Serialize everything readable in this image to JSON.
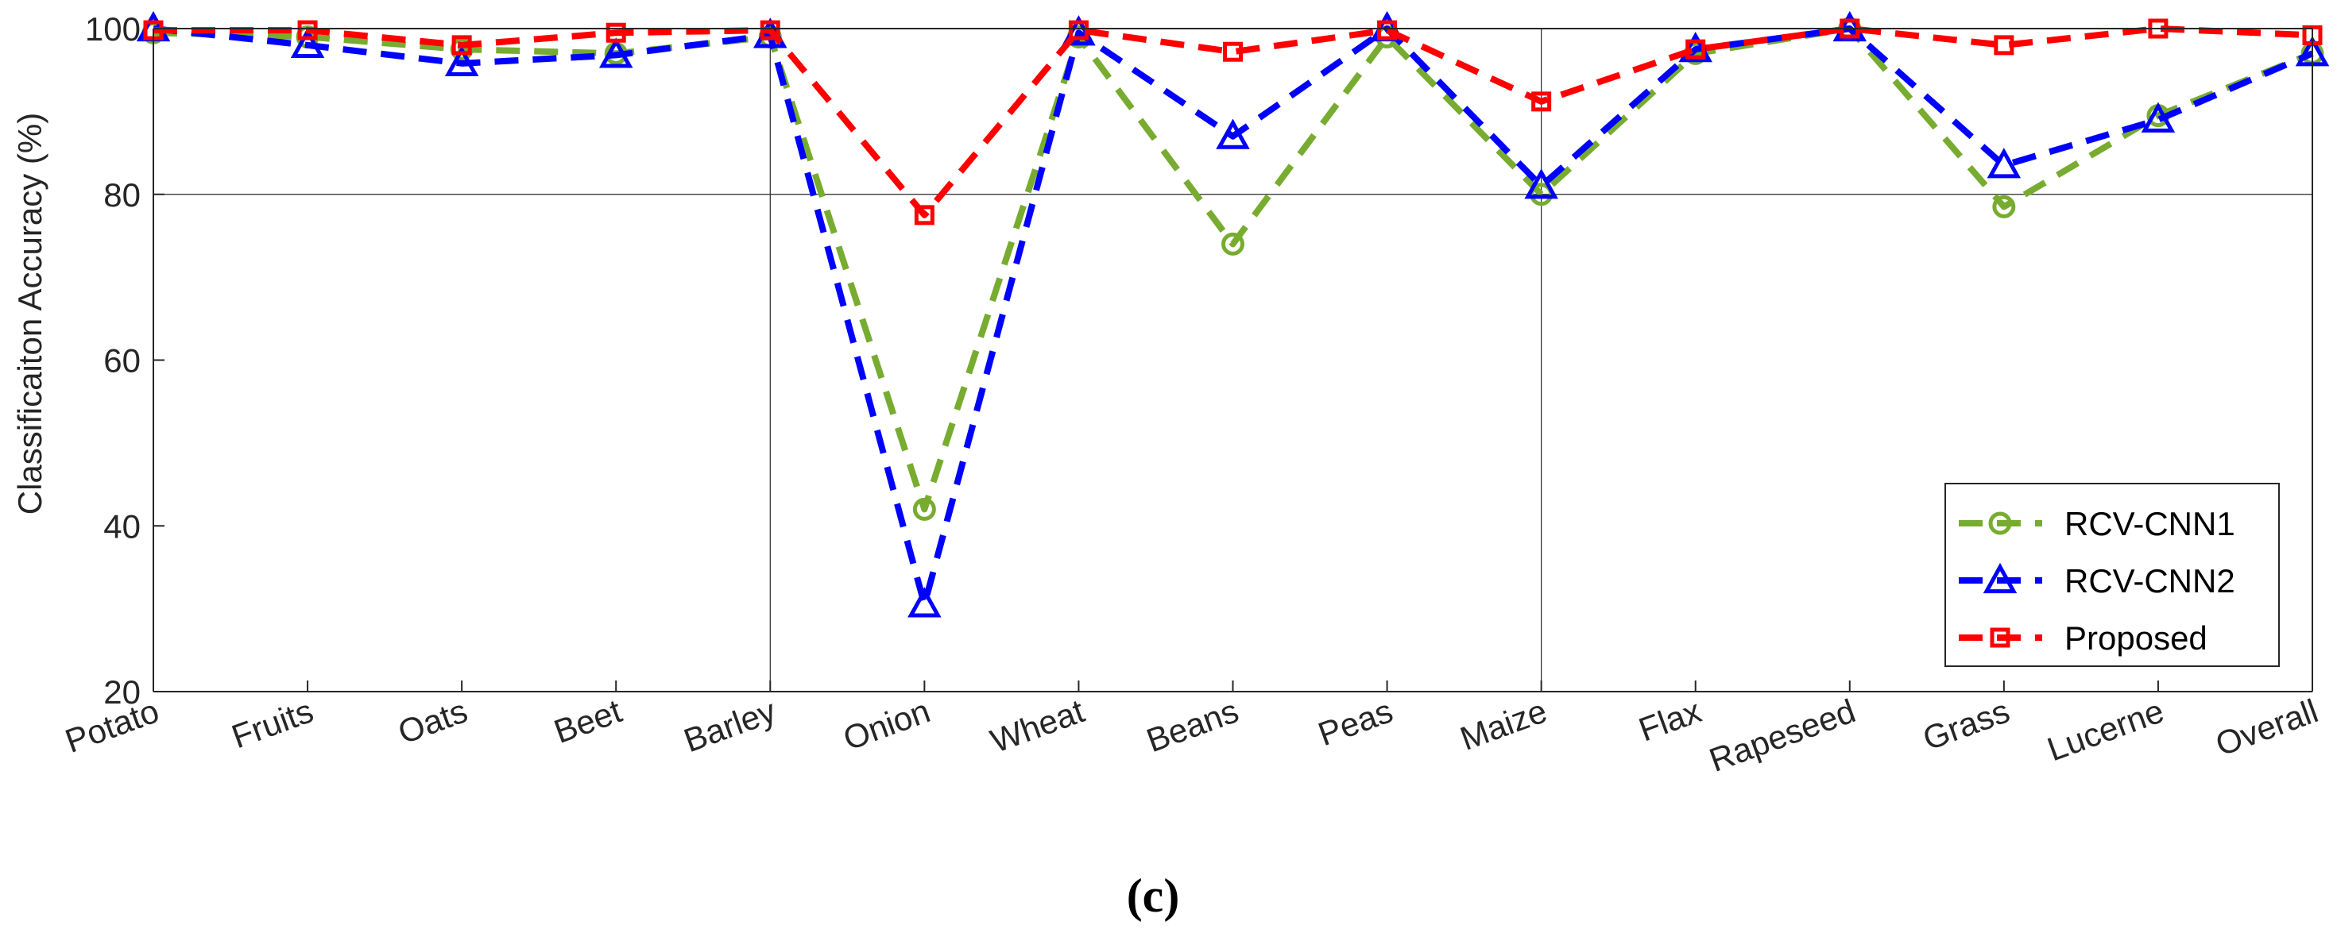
{
  "chart_data": {
    "type": "line",
    "categories": [
      "Potato",
      "Fruits",
      "Oats",
      "Beet",
      "Barley",
      "Onion",
      "Wheat",
      "Beans",
      "Peas",
      "Maize",
      "Flax",
      "Rapeseed",
      "Grass",
      "Lucerne",
      "Overall"
    ],
    "ylabel": "Classificaiton Accuracy (%)",
    "ylim": [
      20,
      100
    ],
    "yticks": [
      20,
      40,
      60,
      80,
      100
    ],
    "grid": "vertical lines at every 5th category (right of Barley, Maize, Overall) and y = 80, 100",
    "legend_position": "bottom-right",
    "series": [
      {
        "name": "RCV-CNN1",
        "color": "#77ac30",
        "marker": "circle",
        "values": [
          99.5,
          99,
          97.5,
          97,
          99,
          42,
          99,
          74,
          99,
          80,
          97,
          100,
          78.5,
          89.5,
          97
        ]
      },
      {
        "name": "RCV-CNN2",
        "color": "#0000ff",
        "marker": "triangle",
        "values": [
          100,
          98,
          95.8,
          96.8,
          99.2,
          30.5,
          99.5,
          87,
          100,
          81,
          97.5,
          100,
          83.5,
          89,
          97
        ]
      },
      {
        "name": "Proposed",
        "color": "#ff0000",
        "marker": "square",
        "values": [
          99.8,
          99.8,
          98,
          99.5,
          99.8,
          77.5,
          99.8,
          97.2,
          99.8,
          91.2,
          97.5,
          100,
          98,
          100,
          99.2
        ]
      }
    ],
    "caption": "(c)"
  }
}
